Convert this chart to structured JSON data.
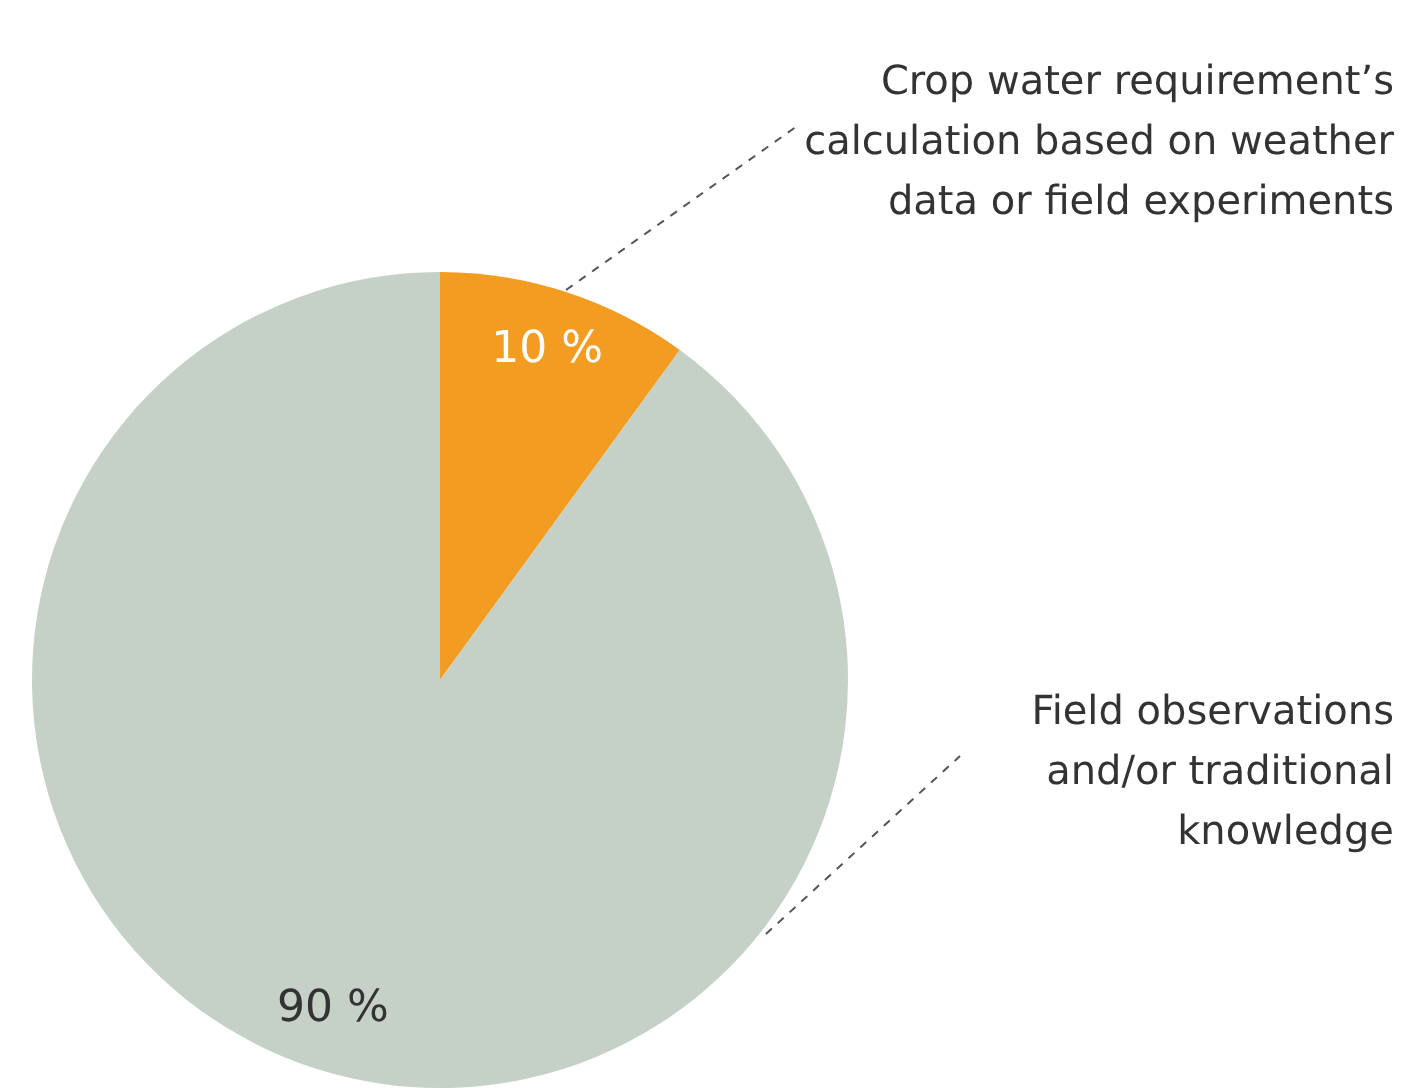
{
  "chart_data": {
    "type": "pie",
    "categories": [
      "Crop water requirement’s calculation based on weather data or field experiments",
      "Field observations and/or traditional knowledge"
    ],
    "values": [
      10,
      90
    ],
    "colors": [
      "#f39c22",
      "#c5d1c6"
    ],
    "value_labels": [
      "10 %",
      "90 %"
    ],
    "legend": false
  }
}
